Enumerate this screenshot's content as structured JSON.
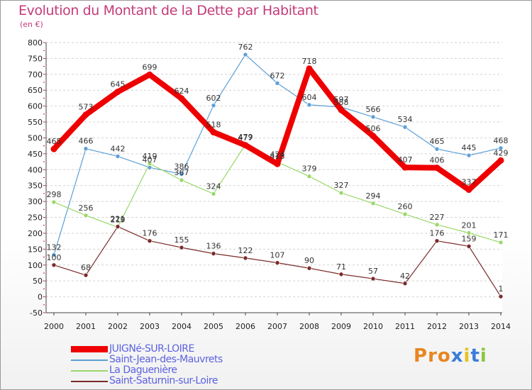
{
  "header": {
    "title": "Evolution du Montant de la Dette par Habitant",
    "subtitle": "(en €)"
  },
  "logo": {
    "text": "Proxiti",
    "colors": [
      "#e8861f",
      "#e8861f",
      "#e8861f",
      "#3b7dd8",
      "#e8c21f",
      "#3b7dd8",
      "#8cc63f"
    ]
  },
  "chart_data": {
    "type": "line",
    "title": "Evolution du Montant de la Dette par Habitant",
    "subtitle": "(en €)",
    "xlabel": "",
    "ylabel": "",
    "x": [
      "2000",
      "2001",
      "2002",
      "2003",
      "2004",
      "2005",
      "2006",
      "2007",
      "2008",
      "2009",
      "2010",
      "2011",
      "2012",
      "2013",
      "2014"
    ],
    "ylim": [
      -50,
      800
    ],
    "yticks": [
      -50,
      0,
      50,
      100,
      150,
      200,
      250,
      300,
      350,
      400,
      450,
      500,
      550,
      600,
      650,
      700,
      750,
      800
    ],
    "grid": "horizontal dashed",
    "legend_position": "bottom-left",
    "series": [
      {
        "name": "JUIGNé-SUR-LOIRE",
        "color": "#ee0000",
        "bold": true,
        "values": [
          465,
          573,
          645,
          699,
          624,
          518,
          477,
          418,
          718,
          588,
          506,
          407,
          406,
          337,
          429
        ]
      },
      {
        "name": "Saint-Jean-des-Mauvrets",
        "color": "#5d9fd6",
        "values": [
          132,
          466,
          442,
          407,
          386,
          602,
          762,
          672,
          604,
          597,
          566,
          534,
          465,
          445,
          468
        ]
      },
      {
        "name": "La Daguenière",
        "color": "#9ad86a",
        "values": [
          298,
          256,
          219,
          419,
          367,
          324,
          479,
          424,
          379,
          327,
          294,
          260,
          227,
          201,
          171
        ]
      },
      {
        "name": "Saint-Saturnin-sur-Loire",
        "color": "#7a2a2a",
        "values": [
          100,
          68,
          221,
          176,
          155,
          136,
          122,
          107,
          90,
          71,
          57,
          42,
          176,
          159,
          1
        ]
      }
    ]
  }
}
